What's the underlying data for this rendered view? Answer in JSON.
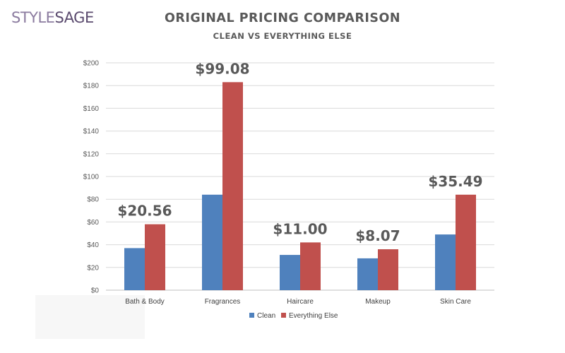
{
  "brand": {
    "part1": "STYLE",
    "part2": "SAGE"
  },
  "chart_data": {
    "type": "bar",
    "title": "ORIGINAL PRICING COMPARISON",
    "subtitle": "CLEAN VS EVERYTHING ELSE",
    "categories": [
      "Bath & Body",
      "Fragrances",
      "Haircare",
      "Makeup",
      "Skin Care"
    ],
    "series": [
      {
        "name": "Clean",
        "color": "#4f81bd",
        "values": [
          37,
          84,
          31,
          28,
          49
        ]
      },
      {
        "name": "Everything Else",
        "color": "#c0504d",
        "values": [
          58,
          183,
          42,
          36,
          84
        ]
      }
    ],
    "annotations": [
      "$20.56",
      "$99.08",
      "$11.00",
      "$8.07",
      "$35.49"
    ],
    "ylim": [
      0,
      200
    ],
    "yticks": [
      0,
      20,
      40,
      60,
      80,
      100,
      120,
      140,
      160,
      180,
      200
    ],
    "ytick_labels": [
      "$0",
      "$20",
      "$40",
      "$60",
      "$80",
      "$100",
      "$120",
      "$140",
      "$160",
      "$180",
      "$200"
    ],
    "xlabel": "",
    "ylabel": "",
    "grid": true,
    "legend_position": "bottom"
  }
}
